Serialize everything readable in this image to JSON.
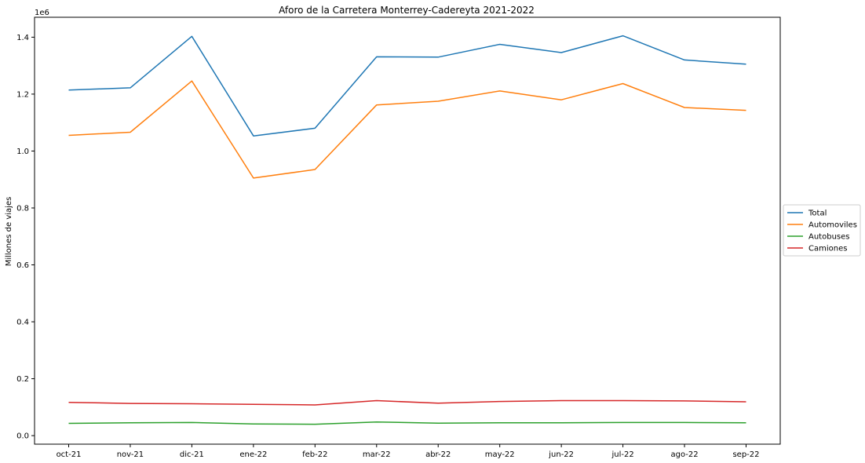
{
  "chart_data": {
    "type": "line",
    "title": "Aforo de la Carretera Monterrey-Cadereyta 2021-2022",
    "xlabel": "",
    "ylabel": "Millones de viajes",
    "y_offset_label": "1e6",
    "categories": [
      "oct-21",
      "nov-21",
      "dic-21",
      "ene-22",
      "feb-22",
      "mar-22",
      "abr-22",
      "may-22",
      "jun-22",
      "jul-22",
      "ago-22",
      "sep-22"
    ],
    "yticks": [
      "0.0",
      "0.2",
      "0.4",
      "0.6",
      "0.8",
      "1.0",
      "1.2",
      "1.4"
    ],
    "ylim": [
      -0.03,
      1.47
    ],
    "grid": false,
    "legend_position": "center-right outside",
    "series": [
      {
        "name": "Total",
        "color": "#1f77b4",
        "values": [
          1.214,
          1.222,
          1.403,
          1.053,
          1.08,
          1.331,
          1.33,
          1.375,
          1.346,
          1.405,
          1.32,
          1.305
        ]
      },
      {
        "name": "Automoviles",
        "color": "#ff7f0e",
        "values": [
          1.055,
          1.066,
          1.246,
          0.905,
          0.935,
          1.162,
          1.175,
          1.211,
          1.18,
          1.237,
          1.153,
          1.143
        ]
      },
      {
        "name": "Autobuses",
        "color": "#2ca02c",
        "values": [
          0.043,
          0.045,
          0.046,
          0.041,
          0.04,
          0.048,
          0.044,
          0.045,
          0.045,
          0.046,
          0.046,
          0.045
        ]
      },
      {
        "name": "Camiones",
        "color": "#d62728",
        "values": [
          0.117,
          0.113,
          0.112,
          0.11,
          0.108,
          0.123,
          0.114,
          0.12,
          0.123,
          0.123,
          0.122,
          0.119
        ]
      }
    ]
  }
}
